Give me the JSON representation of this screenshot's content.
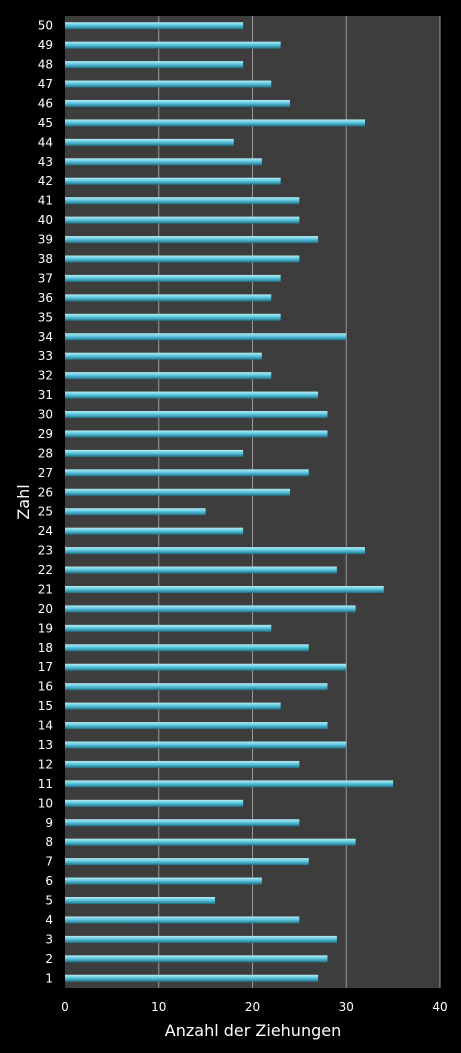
{
  "chart_data": {
    "type": "bar",
    "orientation": "horizontal",
    "categories": [
      "1",
      "2",
      "3",
      "4",
      "5",
      "6",
      "7",
      "8",
      "9",
      "10",
      "11",
      "12",
      "13",
      "14",
      "15",
      "16",
      "17",
      "18",
      "19",
      "20",
      "21",
      "22",
      "23",
      "24",
      "25",
      "26",
      "27",
      "28",
      "29",
      "30",
      "31",
      "32",
      "33",
      "34",
      "35",
      "36",
      "37",
      "38",
      "39",
      "40",
      "41",
      "42",
      "43",
      "44",
      "45",
      "46",
      "47",
      "48",
      "49",
      "50"
    ],
    "values": [
      27,
      28,
      29,
      25,
      16,
      21,
      26,
      31,
      25,
      19,
      35,
      25,
      30,
      28,
      23,
      28,
      30,
      26,
      22,
      31,
      34,
      29,
      32,
      19,
      15,
      24,
      26,
      19,
      28,
      28,
      27,
      22,
      21,
      30,
      23,
      22,
      23,
      25,
      27,
      25,
      25,
      23,
      21,
      18,
      32,
      24,
      22,
      19,
      23,
      19
    ],
    "xlabel": "Anzahl der Ziehungen",
    "ylabel": "Zahl",
    "xlim": [
      0,
      40
    ],
    "xticks": [
      "0",
      "10",
      "20",
      "30",
      "40"
    ],
    "grid": true,
    "colors": {
      "background": "#000000",
      "plot_area": "#3d3d3d",
      "bar": "#5bc8e0",
      "bar_highlight": "#b8ecf6",
      "bar_shadow": "#1f6f85",
      "grid": "#9a9a9a",
      "text": "#ffffff"
    }
  }
}
